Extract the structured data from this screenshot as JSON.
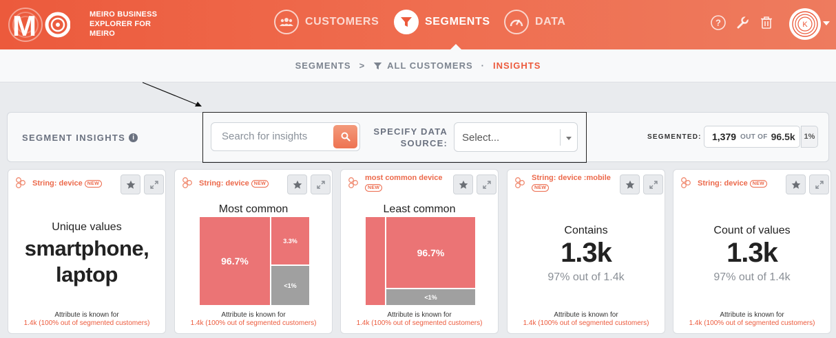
{
  "brand": {
    "logo_letters": "MO",
    "line1": "MEIRO BUSINESS",
    "line2": "EXPLORER FOR",
    "line3": "MEIRO",
    "avatar_initial": "K"
  },
  "nav": [
    {
      "label": "CUSTOMERS",
      "icon": "users-icon"
    },
    {
      "label": "SEGMENTS",
      "icon": "filter-icon",
      "active": true
    },
    {
      "label": "DATA",
      "icon": "gauge-icon"
    }
  ],
  "tools": [
    "help-icon",
    "wrench-icon",
    "trash-icon"
  ],
  "breadcrumb": {
    "item1": "SEGMENTS",
    "sep": ">",
    "item2": "ALL CUSTOMERS",
    "dot": "·",
    "item3": "INSIGHTS"
  },
  "toolbar": {
    "title": "SEGMENT INSIGHTS",
    "info": "i",
    "search_placeholder": "Search for insights",
    "datasource_label_1": "SPECIFY DATA",
    "datasource_label_2": "SOURCE:",
    "select_placeholder": "Select...",
    "segmented_label": "SEGMENTED:",
    "segmented_count": "1,379",
    "segmented_out_of": "OUT OF",
    "segmented_total": "96.5k",
    "segmented_pct": "1%"
  },
  "colors": {
    "accent": "#ec5a3c",
    "treemap_red": "#eb7475",
    "treemap_gray": "#a0a0a0"
  },
  "cards": [
    {
      "tag": "String: device",
      "badge": "NEW",
      "title": "Unique values",
      "value_line1": "smartphone,",
      "value_line2": "laptop",
      "footer_1": "Attribute is known for",
      "footer_2": "1.4k (100% out of segmented customers)"
    },
    {
      "tag": "String: device",
      "badge": "NEW",
      "chart_title": "Most common",
      "cells": [
        "96.7%",
        "3.3%",
        "<1%"
      ],
      "footer_1": "Attribute is known for",
      "footer_2": "1.4k (100% out of segmented customers)"
    },
    {
      "tag": "most common device",
      "badge": "NEW",
      "chart_title": "Least common",
      "cells": [
        "96.7%",
        "<1%"
      ],
      "footer_1": "Attribute is known for",
      "footer_2": "1.4k (100% out of segmented customers)"
    },
    {
      "tag": "String: device :mobile",
      "badge": "NEW",
      "title": "Contains",
      "value": "1.3k",
      "sub": "97% out of 1.4k",
      "footer_1": "Attribute is known for",
      "footer_2": "1.4k (100% out of segmented customers)"
    },
    {
      "tag": "String: device",
      "badge": "NEW",
      "title": "Count of values",
      "value": "1.3k",
      "sub": "97% out of 1.4k",
      "footer_1": "Attribute is known for",
      "footer_2": "1.4k (100% out of segmented customers)"
    }
  ]
}
